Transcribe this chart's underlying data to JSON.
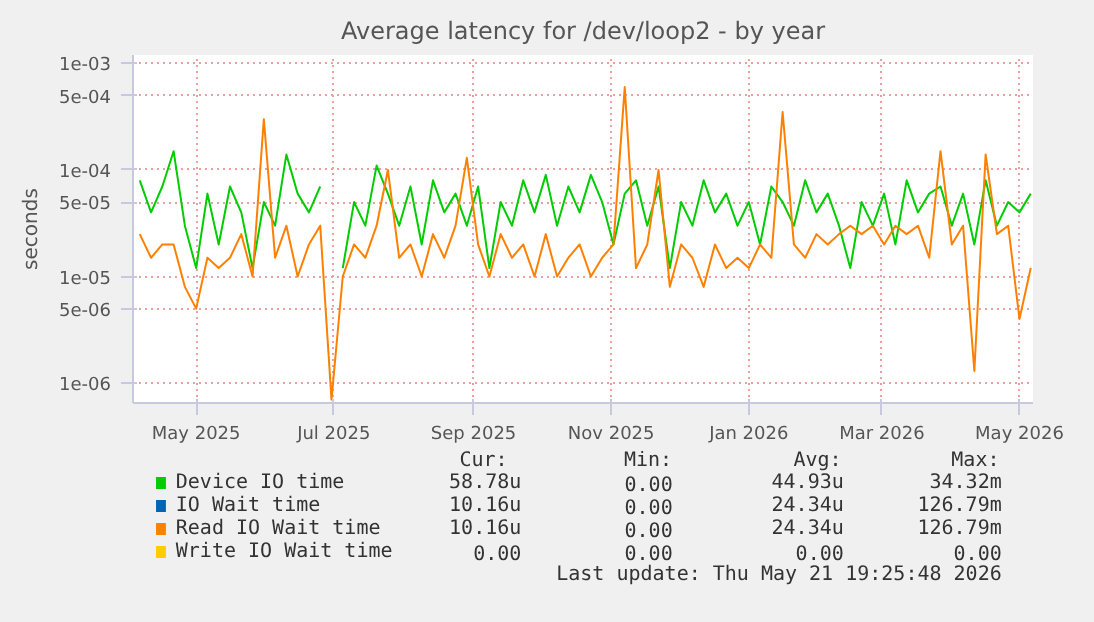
{
  "chart_data": {
    "type": "line",
    "title": "Average latency for /dev/loop2 - by year",
    "ylabel": "seconds",
    "log": "y",
    "grid": true,
    "legend": "bottom",
    "xlim": [
      "2025-04-17",
      "2026-05-21"
    ],
    "xticks": [
      {
        "value": "2025-05-15",
        "label": "May 2025"
      },
      {
        "value": "2025-07-15",
        "label": "Jul 2025"
      },
      {
        "value": "2025-09-15",
        "label": "Sep 2025"
      },
      {
        "value": "2025-11-15",
        "label": "Nov 2025"
      },
      {
        "value": "2026-01-15",
        "label": "Jan 2026"
      },
      {
        "value": "2026-03-15",
        "label": "Mar 2026"
      },
      {
        "value": "2026-05-15",
        "label": "May 2026"
      }
    ],
    "ylim": [
      6.5e-07,
      0.0012
    ],
    "yticks": [
      {
        "value": 1e-06,
        "label": "1e-06"
      },
      {
        "value": 5e-06,
        "label": "5e-06"
      },
      {
        "value": 1e-05,
        "label": "1e-05"
      },
      {
        "value": 5e-05,
        "label": "5e-05"
      },
      {
        "value": 0.0001,
        "label": "1e-04"
      },
      {
        "value": 0.0005,
        "label": "5e-04"
      },
      {
        "value": 0.001,
        "label": "1e-03"
      }
    ],
    "x": [
      "2025-04-20",
      "2025-04-25",
      "2025-04-30",
      "2025-05-05",
      "2025-05-10",
      "2025-05-15",
      "2025-05-20",
      "2025-05-25",
      "2025-05-30",
      "2025-06-04",
      "2025-06-09",
      "2025-06-14",
      "2025-06-19",
      "2025-06-24",
      "2025-06-29",
      "2025-07-04",
      "2025-07-09",
      "2025-07-14",
      "2025-07-19",
      "2025-07-24",
      "2025-07-29",
      "2025-08-03",
      "2025-08-08",
      "2025-08-13",
      "2025-08-18",
      "2025-08-23",
      "2025-08-28",
      "2025-09-02",
      "2025-09-07",
      "2025-09-12",
      "2025-09-17",
      "2025-09-22",
      "2025-09-27",
      "2025-10-02",
      "2025-10-07",
      "2025-10-12",
      "2025-10-17",
      "2025-10-22",
      "2025-10-27",
      "2025-11-01",
      "2025-11-06",
      "2025-11-11",
      "2025-11-16",
      "2025-11-21",
      "2025-11-26",
      "2025-12-01",
      "2025-12-06",
      "2025-12-11",
      "2025-12-16",
      "2025-12-21",
      "2025-12-26",
      "2025-12-31",
      "2026-01-05",
      "2026-01-10",
      "2026-01-15",
      "2026-01-20",
      "2026-01-25",
      "2026-01-30",
      "2026-02-04",
      "2026-02-09",
      "2026-02-14",
      "2026-02-19",
      "2026-02-24",
      "2026-03-01",
      "2026-03-06",
      "2026-03-11",
      "2026-03-16",
      "2026-03-21",
      "2026-03-26",
      "2026-03-31",
      "2026-04-05",
      "2026-04-10",
      "2026-04-15",
      "2026-04-20",
      "2026-04-25",
      "2026-04-30",
      "2026-05-05",
      "2026-05-10",
      "2026-05-15",
      "2026-05-20"
    ],
    "series": [
      {
        "name": "Device IO time",
        "color": "#00cc00",
        "values": [
          8e-05,
          4e-05,
          7e-05,
          0.00015,
          3e-05,
          1.2e-05,
          6e-05,
          2e-05,
          7e-05,
          4e-05,
          1.2e-05,
          5e-05,
          3e-05,
          0.00014,
          6e-05,
          4e-05,
          7e-05,
          null,
          1.2e-05,
          5e-05,
          3e-05,
          0.00011,
          6e-05,
          3e-05,
          7e-05,
          2e-05,
          8e-05,
          4e-05,
          6e-05,
          3e-05,
          7e-05,
          1.2e-05,
          5e-05,
          3e-05,
          8e-05,
          4e-05,
          9e-05,
          3e-05,
          7e-05,
          4e-05,
          9e-05,
          5e-05,
          2e-05,
          6e-05,
          8e-05,
          3e-05,
          7e-05,
          1.2e-05,
          5e-05,
          3e-05,
          8e-05,
          4e-05,
          6e-05,
          3e-05,
          5e-05,
          2e-05,
          7e-05,
          5e-05,
          3e-05,
          8e-05,
          4e-05,
          6e-05,
          3e-05,
          1.2e-05,
          5e-05,
          3e-05,
          6e-05,
          2e-05,
          8e-05,
          4e-05,
          6e-05,
          7e-05,
          3e-05,
          6e-05,
          2e-05,
          8e-05,
          3e-05,
          5e-05,
          4e-05,
          6e-05
        ]
      },
      {
        "name": "IO Wait time",
        "color": "#0066b3",
        "values": [
          null,
          null,
          null,
          null,
          null,
          null,
          null,
          null,
          null,
          null,
          null,
          null,
          null,
          null,
          null,
          null,
          null,
          null,
          null,
          null,
          null,
          null,
          null,
          null,
          null,
          null,
          null,
          null,
          null,
          null,
          null,
          null,
          null,
          null,
          null,
          null,
          null,
          null,
          null,
          null,
          null,
          null,
          null,
          null,
          null,
          null,
          null,
          null,
          null,
          null,
          null,
          null,
          null,
          null,
          null,
          null,
          null,
          null,
          null,
          null,
          null,
          null,
          null,
          null,
          null,
          null,
          null,
          null,
          null,
          null,
          null,
          null,
          null,
          null,
          null,
          null,
          null,
          null,
          null,
          null
        ]
      },
      {
        "name": "Read IO Wait time",
        "color": "#ff8000",
        "values": [
          2.5e-05,
          1.5e-05,
          2e-05,
          2e-05,
          8e-06,
          5e-06,
          1.5e-05,
          1.2e-05,
          1.5e-05,
          2.5e-05,
          1e-05,
          0.0003,
          1.5e-05,
          3e-05,
          1e-05,
          2e-05,
          3e-05,
          7e-07,
          1e-05,
          2e-05,
          1.5e-05,
          3e-05,
          0.0001,
          1.5e-05,
          2e-05,
          1e-05,
          2.5e-05,
          1.5e-05,
          3e-05,
          0.00013,
          2e-05,
          1e-05,
          2.5e-05,
          1.5e-05,
          2e-05,
          1e-05,
          2.5e-05,
          1e-05,
          1.5e-05,
          2e-05,
          1e-05,
          1.5e-05,
          2e-05,
          0.0006,
          1.2e-05,
          2e-05,
          0.0001,
          8e-06,
          2e-05,
          1.5e-05,
          8e-06,
          2e-05,
          1.2e-05,
          1.5e-05,
          1.2e-05,
          2e-05,
          1.5e-05,
          0.00035,
          2e-05,
          1.5e-05,
          2.5e-05,
          2e-05,
          2.5e-05,
          3e-05,
          2.5e-05,
          3e-05,
          2e-05,
          3e-05,
          2.5e-05,
          3e-05,
          1.5e-05,
          0.00015,
          2e-05,
          3e-05,
          1.3e-06,
          0.00014,
          2.5e-05,
          3e-05,
          4e-06,
          1.2e-05
        ]
      },
      {
        "name": "Write IO Wait time",
        "color": "#ffcc00",
        "values": [
          null,
          null,
          null,
          null,
          null,
          null,
          null,
          null,
          null,
          null,
          null,
          null,
          null,
          null,
          null,
          null,
          null,
          null,
          null,
          null,
          null,
          null,
          null,
          null,
          null,
          null,
          null,
          null,
          null,
          null,
          null,
          null,
          null,
          null,
          null,
          null,
          null,
          null,
          null,
          null,
          null,
          null,
          null,
          null,
          null,
          null,
          null,
          null,
          null,
          null,
          null,
          null,
          null,
          null,
          null,
          null,
          null,
          null,
          null,
          null,
          null,
          null,
          null,
          null,
          null,
          null,
          null,
          null,
          null,
          null,
          null,
          null,
          null,
          null,
          null,
          null,
          null,
          null,
          null,
          null
        ]
      }
    ],
    "annotations": [
      "Cur:",
      "Min:",
      "Avg:",
      "Max:",
      "58.78u",
      "0.00",
      "44.93u",
      "34.32m",
      "10.16u",
      "0.00",
      "24.34u",
      "126.79m",
      "10.16u",
      "0.00",
      "24.34u",
      "126.79m",
      "0.00",
      "0.00",
      "0.00",
      "0.00",
      "Last update: Thu May 21 19:25:48 2026"
    ]
  }
}
